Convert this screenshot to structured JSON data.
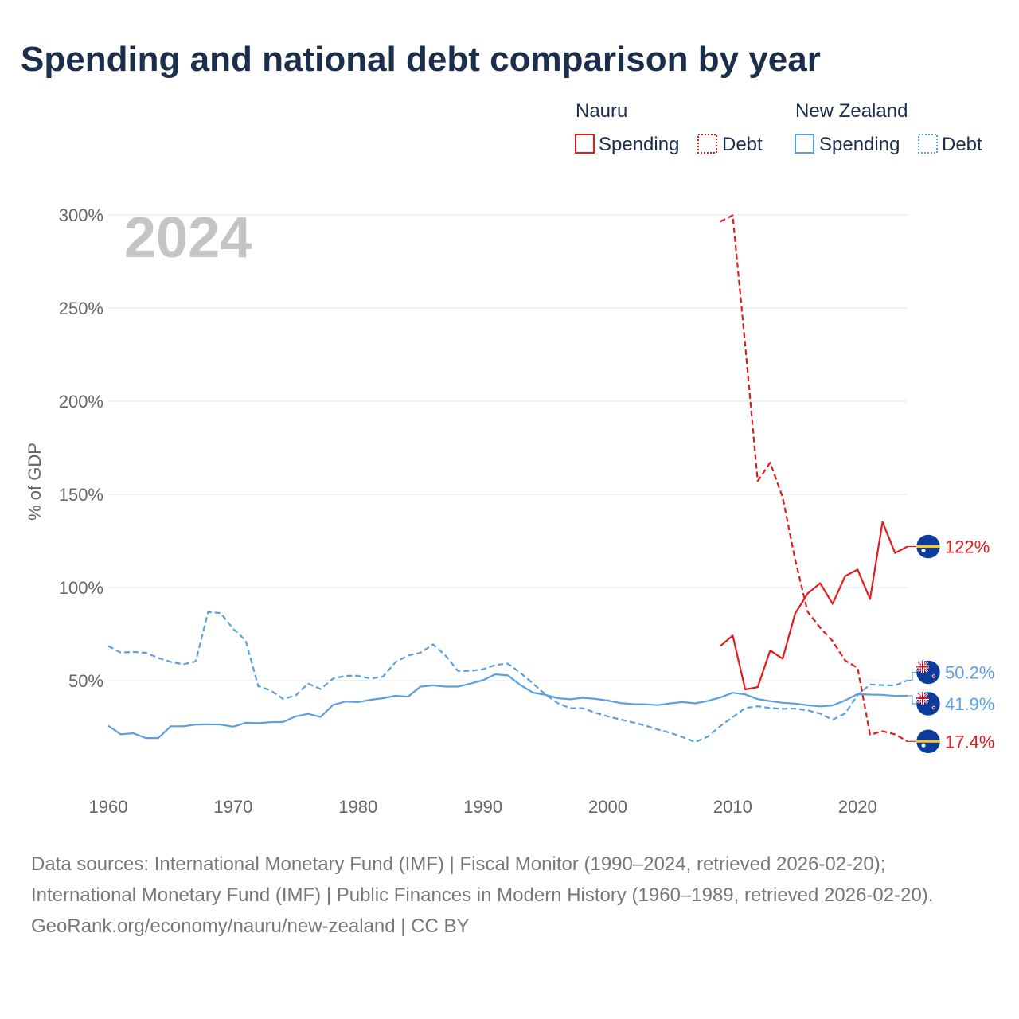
{
  "title": "Spending and national debt comparison by year",
  "year_label": "2024",
  "legend": {
    "groups": [
      {
        "name": "Nauru",
        "color": "#e41a1c",
        "items": [
          "Spending",
          "Debt"
        ]
      },
      {
        "name": "New Zealand",
        "color": "#5aa0e0",
        "items": [
          "Spending",
          "Debt"
        ]
      }
    ]
  },
  "source": {
    "line1": "Data sources: International Monetary Fund (IMF) | Fiscal Monitor (1990–2024, retrieved 2026-02-20); International Monetary Fund (IMF) | Public Finances in Modern History (1960–1989, retrieved 2026-02-20).",
    "line2": "GeoRank.org/economy/nauru/new-zealand | CC BY"
  },
  "chart_data": {
    "type": "line",
    "title": "Spending and national debt comparison by year",
    "xlabel": "",
    "ylabel": "% of GDP",
    "xlim": [
      1960,
      2024
    ],
    "ylim": [
      -25,
      310
    ],
    "x_ticks": [
      1960,
      1970,
      1980,
      1990,
      2000,
      2010,
      2020
    ],
    "y_ticks": [
      50,
      100,
      150,
      200,
      250,
      300
    ],
    "y_tick_labels": [
      "50%",
      "100%",
      "150%",
      "200%",
      "250%",
      "300%"
    ],
    "grid": true,
    "legend_position": "top-right",
    "end_labels": [
      {
        "series": "Nauru Spending",
        "value": 122,
        "label": "122%"
      },
      {
        "series": "New Zealand Debt",
        "value": 50.2,
        "label": "50.2%"
      },
      {
        "series": "New Zealand Spending",
        "value": 41.9,
        "label": "41.9%"
      },
      {
        "series": "Nauru Debt",
        "value": 17.4,
        "label": "17.4%"
      }
    ],
    "series": [
      {
        "name": "Nauru Spending",
        "country": "Nauru",
        "metric": "Spending",
        "color": "#e41a1c",
        "dash": "solid",
        "x": [
          2009,
          2010,
          2011,
          2012,
          2013,
          2014,
          2015,
          2016,
          2017,
          2018,
          2019,
          2020,
          2021,
          2022,
          2023,
          2024
        ],
        "values": [
          68.5,
          74.2,
          45.3,
          46.5,
          66.2,
          61.8,
          86,
          96.8,
          102.3,
          91.2,
          106.1,
          109.6,
          93.8,
          135.2,
          118.5,
          122
        ]
      },
      {
        "name": "Nauru Debt",
        "country": "Nauru",
        "metric": "Debt",
        "color": "#e41a1c",
        "dash": "dashed",
        "x": [
          2009,
          2010,
          2011,
          2012,
          2013,
          2014,
          2015,
          2016,
          2017,
          2018,
          2019,
          2020,
          2021,
          2022,
          2023,
          2024
        ],
        "values": [
          296.4,
          299.8,
          230,
          157.2,
          167,
          148.5,
          115,
          87,
          78.5,
          71.2,
          60.8,
          56.8,
          21,
          22.9,
          21.2,
          17.4
        ]
      },
      {
        "name": "New Zealand Spending",
        "country": "New Zealand",
        "metric": "Spending",
        "color": "#5aa0e0",
        "dash": "solid",
        "x": [
          1960,
          1961,
          1962,
          1963,
          1964,
          1965,
          1966,
          1967,
          1968,
          1969,
          1970,
          1971,
          1972,
          1973,
          1974,
          1975,
          1976,
          1977,
          1978,
          1979,
          1980,
          1981,
          1982,
          1983,
          1984,
          1985,
          1986,
          1987,
          1988,
          1989,
          1990,
          1991,
          1992,
          1993,
          1994,
          1995,
          1996,
          1997,
          1998,
          1999,
          2000,
          2001,
          2002,
          2003,
          2004,
          2005,
          2006,
          2007,
          2008,
          2009,
          2010,
          2011,
          2012,
          2013,
          2014,
          2015,
          2016,
          2017,
          2018,
          2019,
          2020,
          2021,
          2022,
          2023,
          2024
        ],
        "values": [
          25.8,
          21.2,
          21.8,
          19.2,
          19.2,
          25.5,
          25.5,
          26.4,
          26.6,
          26.4,
          25.3,
          27.4,
          27.2,
          27.7,
          27.8,
          30.8,
          32.2,
          30.5,
          37,
          38.8,
          38.5,
          39.7,
          40.6,
          41.9,
          41.4,
          46.8,
          47.5,
          46.8,
          46.8,
          48.4,
          50.2,
          53.4,
          52.8,
          47.6,
          43.6,
          42.4,
          40.6,
          40,
          40.8,
          40.2,
          39.3,
          38,
          37.4,
          37.3,
          36.9,
          37.8,
          38.5,
          37.8,
          39.1,
          41,
          43.5,
          42.6,
          40.1,
          39,
          38.1,
          37.7,
          36.8,
          36.2,
          36.7,
          39.4,
          42.8,
          42.5,
          42.4,
          41.8,
          41.9
        ]
      },
      {
        "name": "New Zealand Debt",
        "country": "New Zealand",
        "metric": "Debt",
        "color": "#5aa0e0",
        "dash": "dashed",
        "x": [
          1960,
          1961,
          1962,
          1963,
          1964,
          1965,
          1966,
          1967,
          1968,
          1969,
          1970,
          1971,
          1972,
          1973,
          1974,
          1975,
          1976,
          1977,
          1978,
          1979,
          1980,
          1981,
          1982,
          1983,
          1984,
          1985,
          1986,
          1987,
          1988,
          1989,
          1990,
          1991,
          1992,
          1993,
          1994,
          1995,
          1996,
          1997,
          1998,
          1999,
          2000,
          2001,
          2002,
          2003,
          2004,
          2005,
          2006,
          2007,
          2008,
          2009,
          2010,
          2011,
          2012,
          2013,
          2014,
          2015,
          2016,
          2017,
          2018,
          2019,
          2020,
          2021,
          2022,
          2023,
          2024
        ],
        "values": [
          68.6,
          65.1,
          65.4,
          65,
          62.2,
          60.1,
          58.8,
          60.3,
          86.9,
          86.3,
          77.8,
          71.6,
          47.1,
          44.8,
          40.2,
          42,
          48.4,
          45.5,
          51.1,
          52.6,
          52.6,
          51.1,
          52.2,
          59.9,
          63.5,
          65,
          69.5,
          63.5,
          55.2,
          55.2,
          56.1,
          58.4,
          59.2,
          54.2,
          48.5,
          42.6,
          37.9,
          35.2,
          35.2,
          32.8,
          30.8,
          29.2,
          27.6,
          25.9,
          23.8,
          22,
          19.7,
          17.1,
          19.9,
          25.6,
          30.4,
          35.3,
          36.3,
          35.3,
          34.9,
          35,
          34.1,
          32.3,
          29,
          32.4,
          42.2,
          47.9,
          47.6,
          47.4,
          50.2
        ]
      }
    ]
  }
}
